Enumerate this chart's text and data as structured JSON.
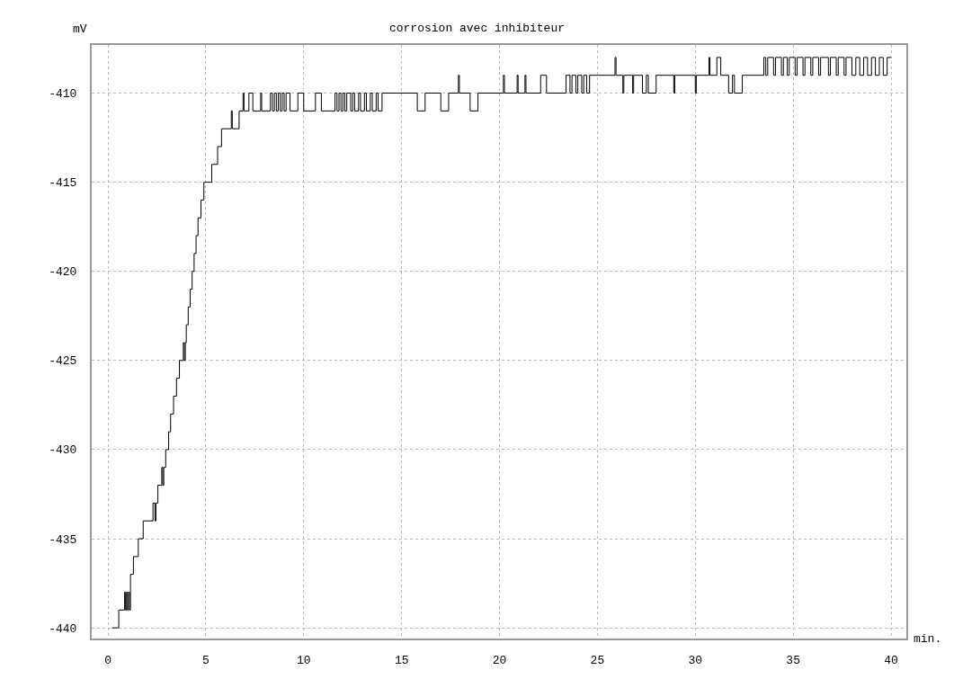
{
  "chart_data": {
    "type": "step",
    "title": "corrosion avec inhibiteur",
    "xlabel": "min.",
    "ylabel": "mV",
    "xlim": [
      -0.83,
      40.78
    ],
    "ylim": [
      -440.6,
      -407.3
    ],
    "xticks": [
      0,
      5,
      10,
      15,
      20,
      25,
      30,
      35,
      40
    ],
    "yticks": [
      -410,
      -415,
      -420,
      -425,
      -430,
      -435,
      -440
    ],
    "grid": true,
    "marker": "none",
    "line_style": "solid",
    "x": [
      0.2,
      0.55,
      0.85,
      0.9,
      0.95,
      1.0,
      1.05,
      1.1,
      1.15,
      1.3,
      1.55,
      1.8,
      2.3,
      2.4,
      2.45,
      2.55,
      2.75,
      2.8,
      2.85,
      2.95,
      3.1,
      3.2,
      3.35,
      3.5,
      3.65,
      3.85,
      3.9,
      3.95,
      4.0,
      4.1,
      4.2,
      4.3,
      4.4,
      4.5,
      4.6,
      4.75,
      4.9,
      5.3,
      5.6,
      5.8,
      6.3,
      6.35,
      6.7,
      6.9,
      6.95,
      7.2,
      7.4,
      7.8,
      7.85,
      8.3,
      8.4,
      8.5,
      8.6,
      8.7,
      8.8,
      8.9,
      9.0,
      9.1,
      9.3,
      9.7,
      10.0,
      10.6,
      10.9,
      11.6,
      11.7,
      11.8,
      11.9,
      12.0,
      12.1,
      12.2,
      12.4,
      12.5,
      12.6,
      12.8,
      12.9,
      13.1,
      13.2,
      13.4,
      13.5,
      13.7,
      13.8,
      14.0,
      15.8,
      16.2,
      17.0,
      17.4,
      17.9,
      17.95,
      18.5,
      18.9,
      20.2,
      20.25,
      20.9,
      20.95,
      21.3,
      21.35,
      22.1,
      22.4,
      23.4,
      23.6,
      23.7,
      23.9,
      24.0,
      24.2,
      24.3,
      24.45,
      24.6,
      25.9,
      25.95,
      26.3,
      26.35,
      26.8,
      26.85,
      27.3,
      27.5,
      27.6,
      28.0,
      28.9,
      28.95,
      30.0,
      30.05,
      30.7,
      30.75,
      31.1,
      31.3,
      31.7,
      31.9,
      32.0,
      32.4,
      33.5,
      33.6,
      33.7,
      34.0,
      34.1,
      34.4,
      34.5,
      34.7,
      34.8,
      35.1,
      35.2,
      35.5,
      35.6,
      35.9,
      36.0,
      36.3,
      36.4,
      36.8,
      36.9,
      37.2,
      37.3,
      37.6,
      37.7,
      38.0,
      38.2,
      38.4,
      38.6,
      38.8,
      39.0,
      39.2,
      39.4,
      39.6,
      39.8,
      40.0
    ],
    "series": [
      {
        "color": "#000000",
        "values": [
          -440,
          -439,
          -438,
          -439,
          -438,
          -439,
          -438,
          -439,
          -437,
          -436,
          -435,
          -434,
          -433,
          -434,
          -433,
          -432,
          -431,
          -432,
          -431,
          -430,
          -429,
          -428,
          -427,
          -426,
          -425,
          -424,
          -425,
          -424,
          -423,
          -422,
          -421,
          -420,
          -419,
          -418,
          -417,
          -416,
          -415,
          -414,
          -413,
          -412,
          -411,
          -412,
          -411,
          -410,
          -411,
          -410,
          -411,
          -410,
          -411,
          -410,
          -411,
          -410,
          -411,
          -410,
          -411,
          -410,
          -411,
          -410,
          -411,
          -410,
          -411,
          -410,
          -411,
          -410,
          -411,
          -410,
          -411,
          -410,
          -411,
          -410,
          -411,
          -410,
          -411,
          -410,
          -411,
          -410,
          -411,
          -410,
          -411,
          -410,
          -411,
          -410,
          -411,
          -410,
          -411,
          -410,
          -409,
          -410,
          -411,
          -410,
          -409,
          -410,
          -409,
          -410,
          -409,
          -410,
          -409,
          -410,
          -409,
          -410,
          -409,
          -410,
          -409,
          -410,
          -409,
          -410,
          -409,
          -408,
          -409,
          -410,
          -409,
          -410,
          -409,
          -410,
          -409,
          -410,
          -409,
          -410,
          -409,
          -410,
          -409,
          -408,
          -409,
          -408,
          -409,
          -410,
          -409,
          -410,
          -409,
          -408,
          -409,
          -408,
          -409,
          -408,
          -409,
          -408,
          -409,
          -408,
          -409,
          -408,
          -409,
          -408,
          -409,
          -408,
          -409,
          -408,
          -409,
          -408,
          -409,
          -408,
          -409,
          -408,
          -409,
          -408,
          -409,
          -408,
          -409,
          -408,
          -409,
          -408,
          -409,
          -408,
          -408
        ]
      }
    ]
  }
}
